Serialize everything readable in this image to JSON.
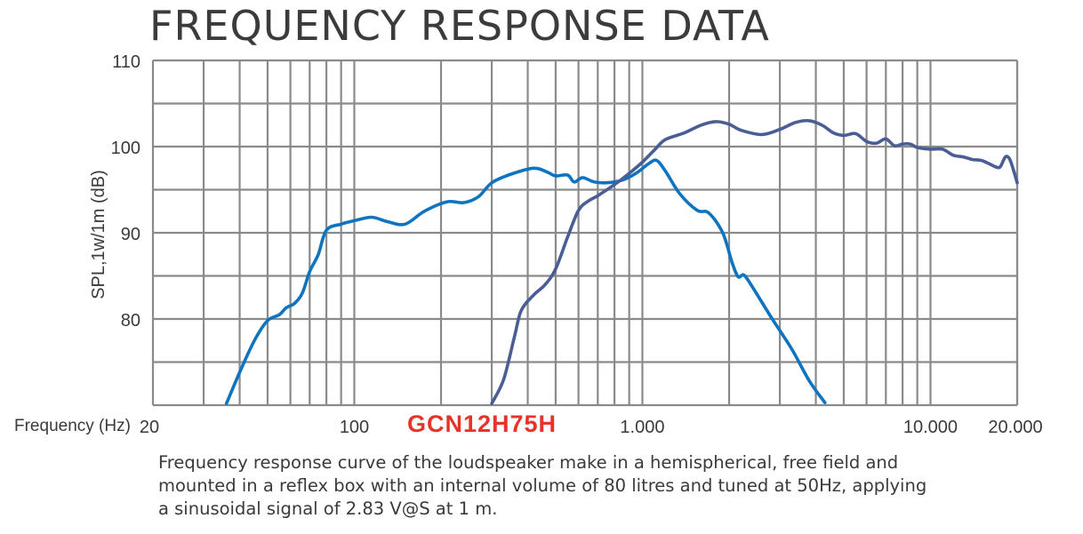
{
  "title": "FREQUENCY RESPONSE DATA",
  "model": "GCN12H75H",
  "caption": [
    "Frequency response curve of the loudspeaker make in a hemispherical, free field and",
    "mounted in a reflex box with an internal volume of 80 litres and tuned at 50Hz, applying",
    "a sinusoidal signal of 2.83 V@S at 1 m."
  ],
  "colors": {
    "series_light": "#0f74bf",
    "series_dark": "#4a5d95",
    "grid": "#8a8a8a"
  },
  "chart_data": {
    "type": "line",
    "xscale": "log",
    "xlim": [
      20,
      20000
    ],
    "ylim": [
      70,
      110
    ],
    "xlabel": "Frequency (Hz)",
    "ylabel": "SPL,1w/1m (dB)",
    "grid": true,
    "xtick_labels": [
      {
        "value": 20,
        "label": "20"
      },
      {
        "value": 100,
        "label": "100"
      },
      {
        "value": 1000,
        "label": "1.000"
      },
      {
        "value": 10000,
        "label": "10.000"
      },
      {
        "value": 20000,
        "label": "20.000"
      }
    ],
    "yticks": [
      {
        "value": 80,
        "label": "80"
      },
      {
        "value": 90,
        "label": "90"
      },
      {
        "value": 100,
        "label": "100"
      },
      {
        "value": 110,
        "label": "110"
      }
    ],
    "series": [
      {
        "color": "#0f74bf",
        "points": [
          [
            36,
            70.2
          ],
          [
            40,
            73.8
          ],
          [
            45,
            77.5
          ],
          [
            50,
            79.8
          ],
          [
            55,
            80.5
          ],
          [
            58,
            81.3
          ],
          [
            62,
            81.8
          ],
          [
            66,
            83.0
          ],
          [
            70,
            85.5
          ],
          [
            75,
            87.5
          ],
          [
            80,
            90.3
          ],
          [
            90,
            91.0
          ],
          [
            100,
            91.4
          ],
          [
            115,
            91.8
          ],
          [
            130,
            91.3
          ],
          [
            150,
            91.0
          ],
          [
            175,
            92.5
          ],
          [
            210,
            93.6
          ],
          [
            240,
            93.5
          ],
          [
            270,
            94.2
          ],
          [
            300,
            95.8
          ],
          [
            350,
            96.8
          ],
          [
            420,
            97.5
          ],
          [
            470,
            97.0
          ],
          [
            500,
            96.6
          ],
          [
            550,
            96.7
          ],
          [
            580,
            95.9
          ],
          [
            620,
            96.4
          ],
          [
            680,
            95.9
          ],
          [
            750,
            95.8
          ],
          [
            850,
            96.1
          ],
          [
            950,
            96.9
          ],
          [
            1050,
            98.0
          ],
          [
            1120,
            98.4
          ],
          [
            1200,
            97.2
          ],
          [
            1350,
            94.5
          ],
          [
            1550,
            92.6
          ],
          [
            1700,
            92.3
          ],
          [
            1900,
            90.0
          ],
          [
            2050,
            86.5
          ],
          [
            2150,
            84.9
          ],
          [
            2250,
            85.1
          ],
          [
            2400,
            83.8
          ],
          [
            2800,
            80.2
          ],
          [
            3300,
            76.5
          ],
          [
            3800,
            72.8
          ],
          [
            4300,
            70.3
          ]
        ]
      },
      {
        "color": "#4a5d95",
        "points": [
          [
            300,
            70.2
          ],
          [
            330,
            73.0
          ],
          [
            360,
            78.0
          ],
          [
            380,
            81.0
          ],
          [
            420,
            82.8
          ],
          [
            460,
            84.0
          ],
          [
            500,
            85.8
          ],
          [
            550,
            89.5
          ],
          [
            600,
            92.6
          ],
          [
            650,
            93.7
          ],
          [
            700,
            94.3
          ],
          [
            800,
            95.6
          ],
          [
            900,
            96.9
          ],
          [
            1000,
            98.2
          ],
          [
            1100,
            99.6
          ],
          [
            1200,
            100.8
          ],
          [
            1400,
            101.6
          ],
          [
            1600,
            102.5
          ],
          [
            1800,
            102.9
          ],
          [
            2000,
            102.6
          ],
          [
            2200,
            101.9
          ],
          [
            2600,
            101.4
          ],
          [
            3000,
            102.0
          ],
          [
            3400,
            102.8
          ],
          [
            3800,
            103.0
          ],
          [
            4200,
            102.5
          ],
          [
            4600,
            101.6
          ],
          [
            5000,
            101.3
          ],
          [
            5500,
            101.5
          ],
          [
            6000,
            100.6
          ],
          [
            6500,
            100.4
          ],
          [
            7000,
            100.9
          ],
          [
            7500,
            100.1
          ],
          [
            8000,
            100.3
          ],
          [
            8500,
            100.3
          ],
          [
            9000,
            99.9
          ],
          [
            10000,
            99.7
          ],
          [
            11000,
            99.7
          ],
          [
            12000,
            99.0
          ],
          [
            13000,
            98.8
          ],
          [
            14000,
            98.5
          ],
          [
            15000,
            98.4
          ],
          [
            16000,
            98.0
          ],
          [
            17000,
            97.6
          ],
          [
            17500,
            97.7
          ],
          [
            18200,
            98.8
          ],
          [
            18800,
            98.6
          ],
          [
            19400,
            97.3
          ],
          [
            20000,
            95.8
          ]
        ]
      }
    ]
  }
}
